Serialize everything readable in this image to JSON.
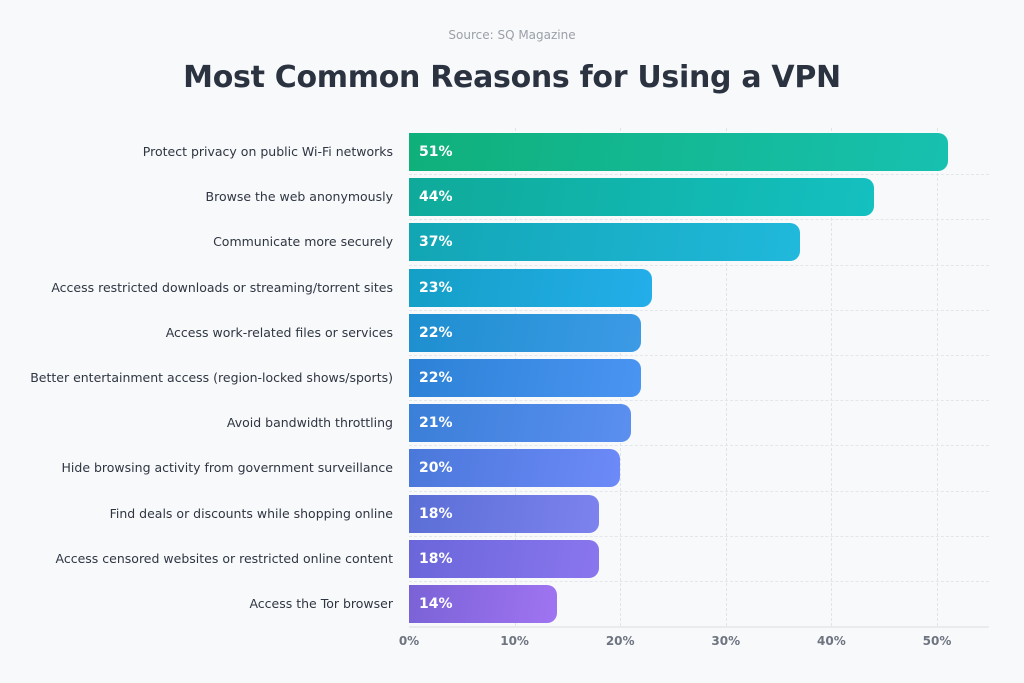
{
  "source": "Source: SQ Magazine",
  "title": "Most Common Reasons for Using a VPN",
  "axis": {
    "ticks": [
      "0%",
      "10%",
      "20%",
      "30%",
      "40%",
      "50%"
    ],
    "tick_values": [
      0,
      10,
      20,
      30,
      40,
      50
    ]
  },
  "bars": [
    {
      "label": "Protect privacy on public Wi-Fi networks",
      "value": 51,
      "value_label": "51%",
      "color_start": "#10b07a",
      "color_end": "#17c1b0"
    },
    {
      "label": "Browse the web anonymously",
      "value": 44,
      "value_label": "44%",
      "color_start": "#0faa9a",
      "color_end": "#14c0c0"
    },
    {
      "label": "Communicate more securely",
      "value": 37,
      "value_label": "37%",
      "color_start": "#12a6b4",
      "color_end": "#20b8dc"
    },
    {
      "label": "Access restricted downloads or streaming/torrent sites",
      "value": 23,
      "value_label": "23%",
      "color_start": "#149fc6",
      "color_end": "#24aeea"
    },
    {
      "label": "Access work-related files or services",
      "value": 22,
      "value_label": "22%",
      "color_start": "#1d8fcf",
      "color_end": "#3d9ae6"
    },
    {
      "label": "Better entertainment access (region-locked shows/sports)",
      "value": 22,
      "value_label": "22%",
      "color_start": "#2c82d6",
      "color_end": "#4a94f2"
    },
    {
      "label": "Avoid bandwidth throttling",
      "value": 21,
      "value_label": "21%",
      "color_start": "#3a7fd8",
      "color_end": "#5b8ff0"
    },
    {
      "label": "Hide browsing activity from government surveillance",
      "value": 20,
      "value_label": "20%",
      "color_start": "#4a78da",
      "color_end": "#6d8af8"
    },
    {
      "label": "Find deals or discounts while shopping online",
      "value": 18,
      "value_label": "18%",
      "color_start": "#5a6fd6",
      "color_end": "#7d82ee"
    },
    {
      "label": "Access censored websites or restricted online content",
      "value": 18,
      "value_label": "18%",
      "color_start": "#6a66da",
      "color_end": "#8a76ee"
    },
    {
      "label": "Access the Tor browser",
      "value": 14,
      "value_label": "14%",
      "color_start": "#7a62d6",
      "color_end": "#a074f2"
    }
  ],
  "chart_data": {
    "type": "bar",
    "orientation": "horizontal",
    "title": "Most Common Reasons for Using a VPN",
    "subtitle": "Source: SQ Magazine",
    "categories": [
      "Protect privacy on public Wi-Fi networks",
      "Browse the web anonymously",
      "Communicate more securely",
      "Access restricted downloads or streaming/torrent sites",
      "Access work-related files or services",
      "Better entertainment access (region-locked shows/sports)",
      "Avoid bandwidth throttling",
      "Hide browsing activity from government surveillance",
      "Find deals or discounts while shopping online",
      "Access censored websites or restricted online content",
      "Access the Tor browser"
    ],
    "values": [
      51,
      44,
      37,
      23,
      22,
      22,
      21,
      20,
      18,
      18,
      14
    ],
    "xlabel": "",
    "ylabel": "",
    "xlim": [
      0,
      55
    ],
    "x_ticks": [
      "0%",
      "10%",
      "20%",
      "30%",
      "40%",
      "50%"
    ],
    "grid": true,
    "legend": "none"
  }
}
